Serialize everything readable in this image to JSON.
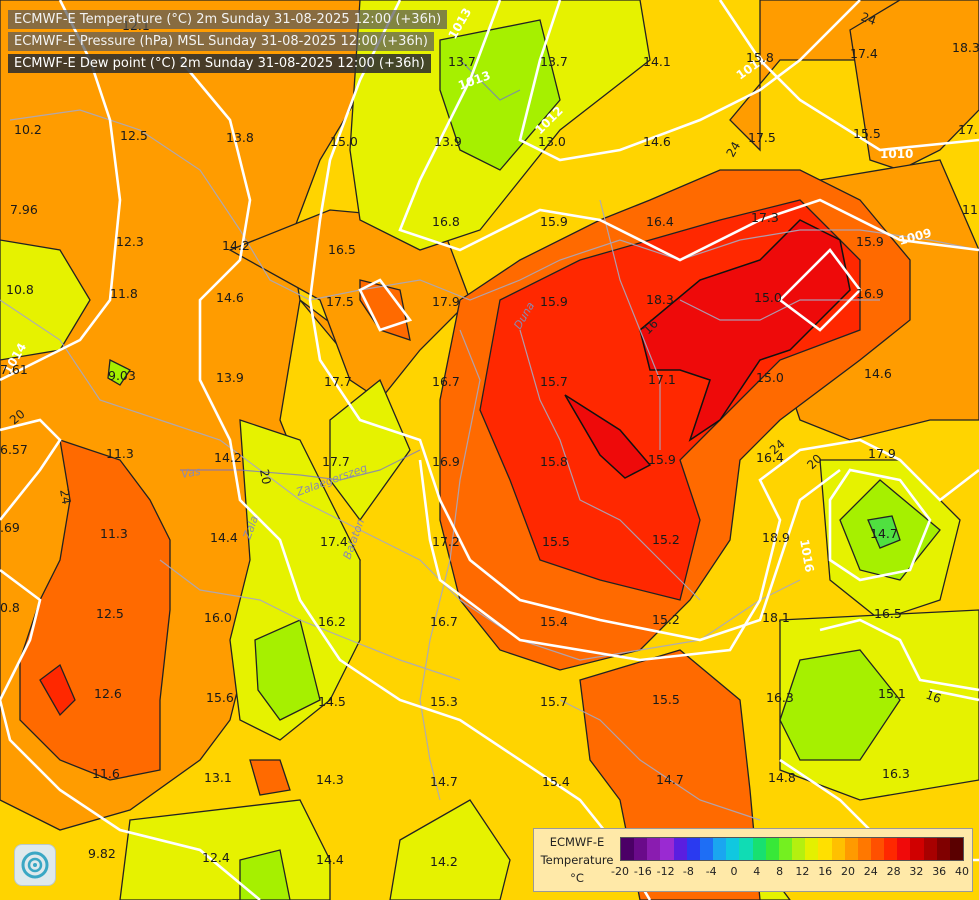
{
  "headers": [
    "ECMWF-E Temperature (°C) 2m Sunday 31-08-2025 12:00 (+36h)",
    "ECMWF-E Pressure (hPa) MSL Sunday 31-08-2025 12:00 (+36h)",
    "ECMWF-E Dew point (°C) 2m Sunday 31-08-2025 12:00 (+36h)"
  ],
  "legend": {
    "title_lines": [
      "ECMWF-E",
      "Temperature",
      "°C"
    ],
    "ticks": [
      "-20",
      "-16",
      "-12",
      "-8",
      "-4",
      "0",
      "4",
      "8",
      "12",
      "16",
      "20",
      "24",
      "28",
      "32",
      "36",
      "40"
    ],
    "colors": [
      "#4b0066",
      "#6a0a8a",
      "#8a1cb0",
      "#9a2ad2",
      "#5a1ee0",
      "#2a3af0",
      "#1e6ef5",
      "#1aa6f0",
      "#10c8e0",
      "#10dcb4",
      "#18e070",
      "#38e838",
      "#74f020",
      "#b4f010",
      "#e4f000",
      "#ffe000",
      "#ffc000",
      "#ff9a00",
      "#ff7800",
      "#ff5000",
      "#ff2800",
      "#f00a0a",
      "#d00000",
      "#a80000",
      "#800000",
      "#5a0000"
    ]
  },
  "values": [
    {
      "t": "12.1"
    },
    {
      "t": "13.7"
    },
    {
      "t": "13.7"
    },
    {
      "t": "14.1"
    },
    {
      "t": "15.8"
    },
    {
      "t": "17.4"
    },
    {
      "t": "18.3"
    },
    {
      "t": "10.2"
    },
    {
      "t": "12.5"
    },
    {
      "t": "13.8"
    },
    {
      "t": "15.0"
    },
    {
      "t": "13.9"
    },
    {
      "t": "13.0"
    },
    {
      "t": "14.6"
    },
    {
      "t": "17.5"
    },
    {
      "t": "15.5"
    },
    {
      "t": "17."
    },
    {
      "t": "7.96"
    },
    {
      "t": "12.3"
    },
    {
      "t": "14.2"
    },
    {
      "t": "16.5"
    },
    {
      "t": "16.8"
    },
    {
      "t": "15.9"
    },
    {
      "t": "16.4"
    },
    {
      "t": "17.3"
    },
    {
      "t": "15.9"
    },
    {
      "t": "11"
    },
    {
      "t": "10.8"
    },
    {
      "t": "11.8"
    },
    {
      "t": "14.6"
    },
    {
      "t": "17.5"
    },
    {
      "t": "17.9"
    },
    {
      "t": "15.9"
    },
    {
      "t": "18.3"
    },
    {
      "t": "15.0"
    },
    {
      "t": "16.9"
    },
    {
      "t": "7.61"
    },
    {
      "t": "9.03"
    },
    {
      "t": "13.9"
    },
    {
      "t": "17.7"
    },
    {
      "t": "16.7"
    },
    {
      "t": "15.7"
    },
    {
      "t": "17.1"
    },
    {
      "t": "15.0"
    },
    {
      "t": "14.6"
    },
    {
      "t": "6.57"
    },
    {
      "t": "11.3"
    },
    {
      "t": "14.2"
    },
    {
      "t": "17.7"
    },
    {
      "t": "16.9"
    },
    {
      "t": "15.8"
    },
    {
      "t": "15.9"
    },
    {
      "t": "16.4"
    },
    {
      "t": "17.9"
    },
    {
      "t": ".69"
    },
    {
      "t": "11.3"
    },
    {
      "t": "14.4"
    },
    {
      "t": "17.4"
    },
    {
      "t": "17.2"
    },
    {
      "t": "15.5"
    },
    {
      "t": "15.2"
    },
    {
      "t": "18.9"
    },
    {
      "t": "14.7"
    },
    {
      "t": "0.8"
    },
    {
      "t": "12.5"
    },
    {
      "t": "16.0"
    },
    {
      "t": "16.2"
    },
    {
      "t": "16.7"
    },
    {
      "t": "15.4"
    },
    {
      "t": "15.2"
    },
    {
      "t": "18.1"
    },
    {
      "t": "16.5"
    },
    {
      "t": "12.6"
    },
    {
      "t": "15.6"
    },
    {
      "t": "14.5"
    },
    {
      "t": "15.3"
    },
    {
      "t": "15.7"
    },
    {
      "t": "15.5"
    },
    {
      "t": "16.3"
    },
    {
      "t": "15.1"
    },
    {
      "t": "11.6"
    },
    {
      "t": "13.1"
    },
    {
      "t": "14.3"
    },
    {
      "t": "14.7"
    },
    {
      "t": "15.4"
    },
    {
      "t": "14.7"
    },
    {
      "t": "14.8"
    },
    {
      "t": "16.3"
    },
    {
      "t": "9.82"
    },
    {
      "t": "12.4"
    },
    {
      "t": "14.4"
    },
    {
      "t": "14.2"
    }
  ],
  "isobars": [
    "1013",
    "1013",
    "1012",
    "1011",
    "1010",
    "1009",
    "1014",
    "1016"
  ],
  "dewpoint_labels": [
    "24",
    "24",
    "20",
    "24",
    "20",
    "24",
    "20",
    "16",
    "16"
  ],
  "rivers": [
    "Vas",
    "Zala",
    "Zalaegerszeg",
    "Balaton",
    "Duna"
  ]
}
